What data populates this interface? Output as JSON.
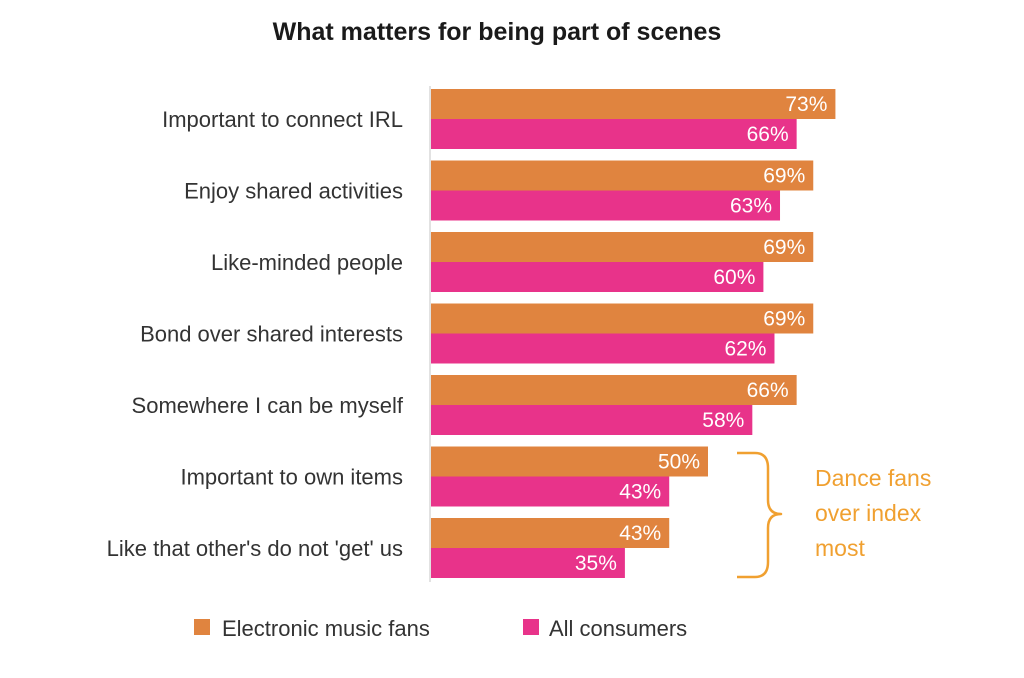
{
  "chart_data": {
    "type": "bar",
    "orientation": "horizontal",
    "title": "What matters for being part of scenes",
    "categories": [
      "Important to connect IRL",
      "Enjoy shared activities",
      "Like-minded people",
      "Bond over shared interests",
      "Somewhere I can be myself",
      "Important to own items",
      "Like that other's do not 'get' us"
    ],
    "series": [
      {
        "name": "Electronic music fans",
        "color": "#e0843f",
        "values": [
          73,
          69,
          69,
          69,
          66,
          50,
          43
        ],
        "labels": [
          "73%",
          "69%",
          "69%",
          "69%",
          "66%",
          "50%",
          "43%"
        ]
      },
      {
        "name": "All consumers",
        "color": "#e8338a",
        "values": [
          66,
          63,
          60,
          62,
          58,
          43,
          35
        ],
        "labels": [
          "66%",
          "63%",
          "60%",
          "62%",
          "58%",
          "43%",
          "35%"
        ]
      }
    ],
    "xlim": [
      0,
      80
    ],
    "xlabel": "",
    "ylabel": "",
    "legend_position": "bottom",
    "annotation": {
      "lines": [
        "Dance fans",
        "over index",
        "most"
      ],
      "color": "#f0a030",
      "applies_to": [
        "Important to own items",
        "Like that other's do not 'get' us"
      ]
    }
  }
}
